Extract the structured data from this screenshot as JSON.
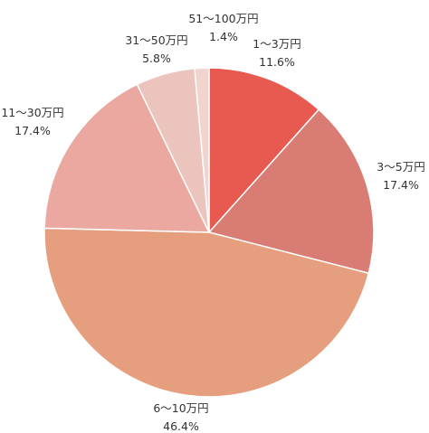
{
  "chart_data": {
    "type": "pie",
    "start_angle_deg": 0,
    "direction": "clockwise",
    "slices": [
      {
        "label": "1～3万円",
        "value": 11.6,
        "value_label": "11.6%",
        "color": "#E85A4F"
      },
      {
        "label": "3～5万円",
        "value": 17.4,
        "value_label": "17.4%",
        "color": "#D97C74"
      },
      {
        "label": "6～10万円",
        "value": 46.4,
        "value_label": "46.4%",
        "color": "#E59F7F"
      },
      {
        "label": "11～30万円",
        "value": 17.4,
        "value_label": "17.4%",
        "color": "#EBA8A0"
      },
      {
        "label": "31～50万円",
        "value": 5.8,
        "value_label": "5.8%",
        "color": "#ECC4BE"
      },
      {
        "label": "51～100万円",
        "value": 1.4,
        "value_label": "1.4%",
        "color": "#F1D4D0"
      }
    ]
  }
}
